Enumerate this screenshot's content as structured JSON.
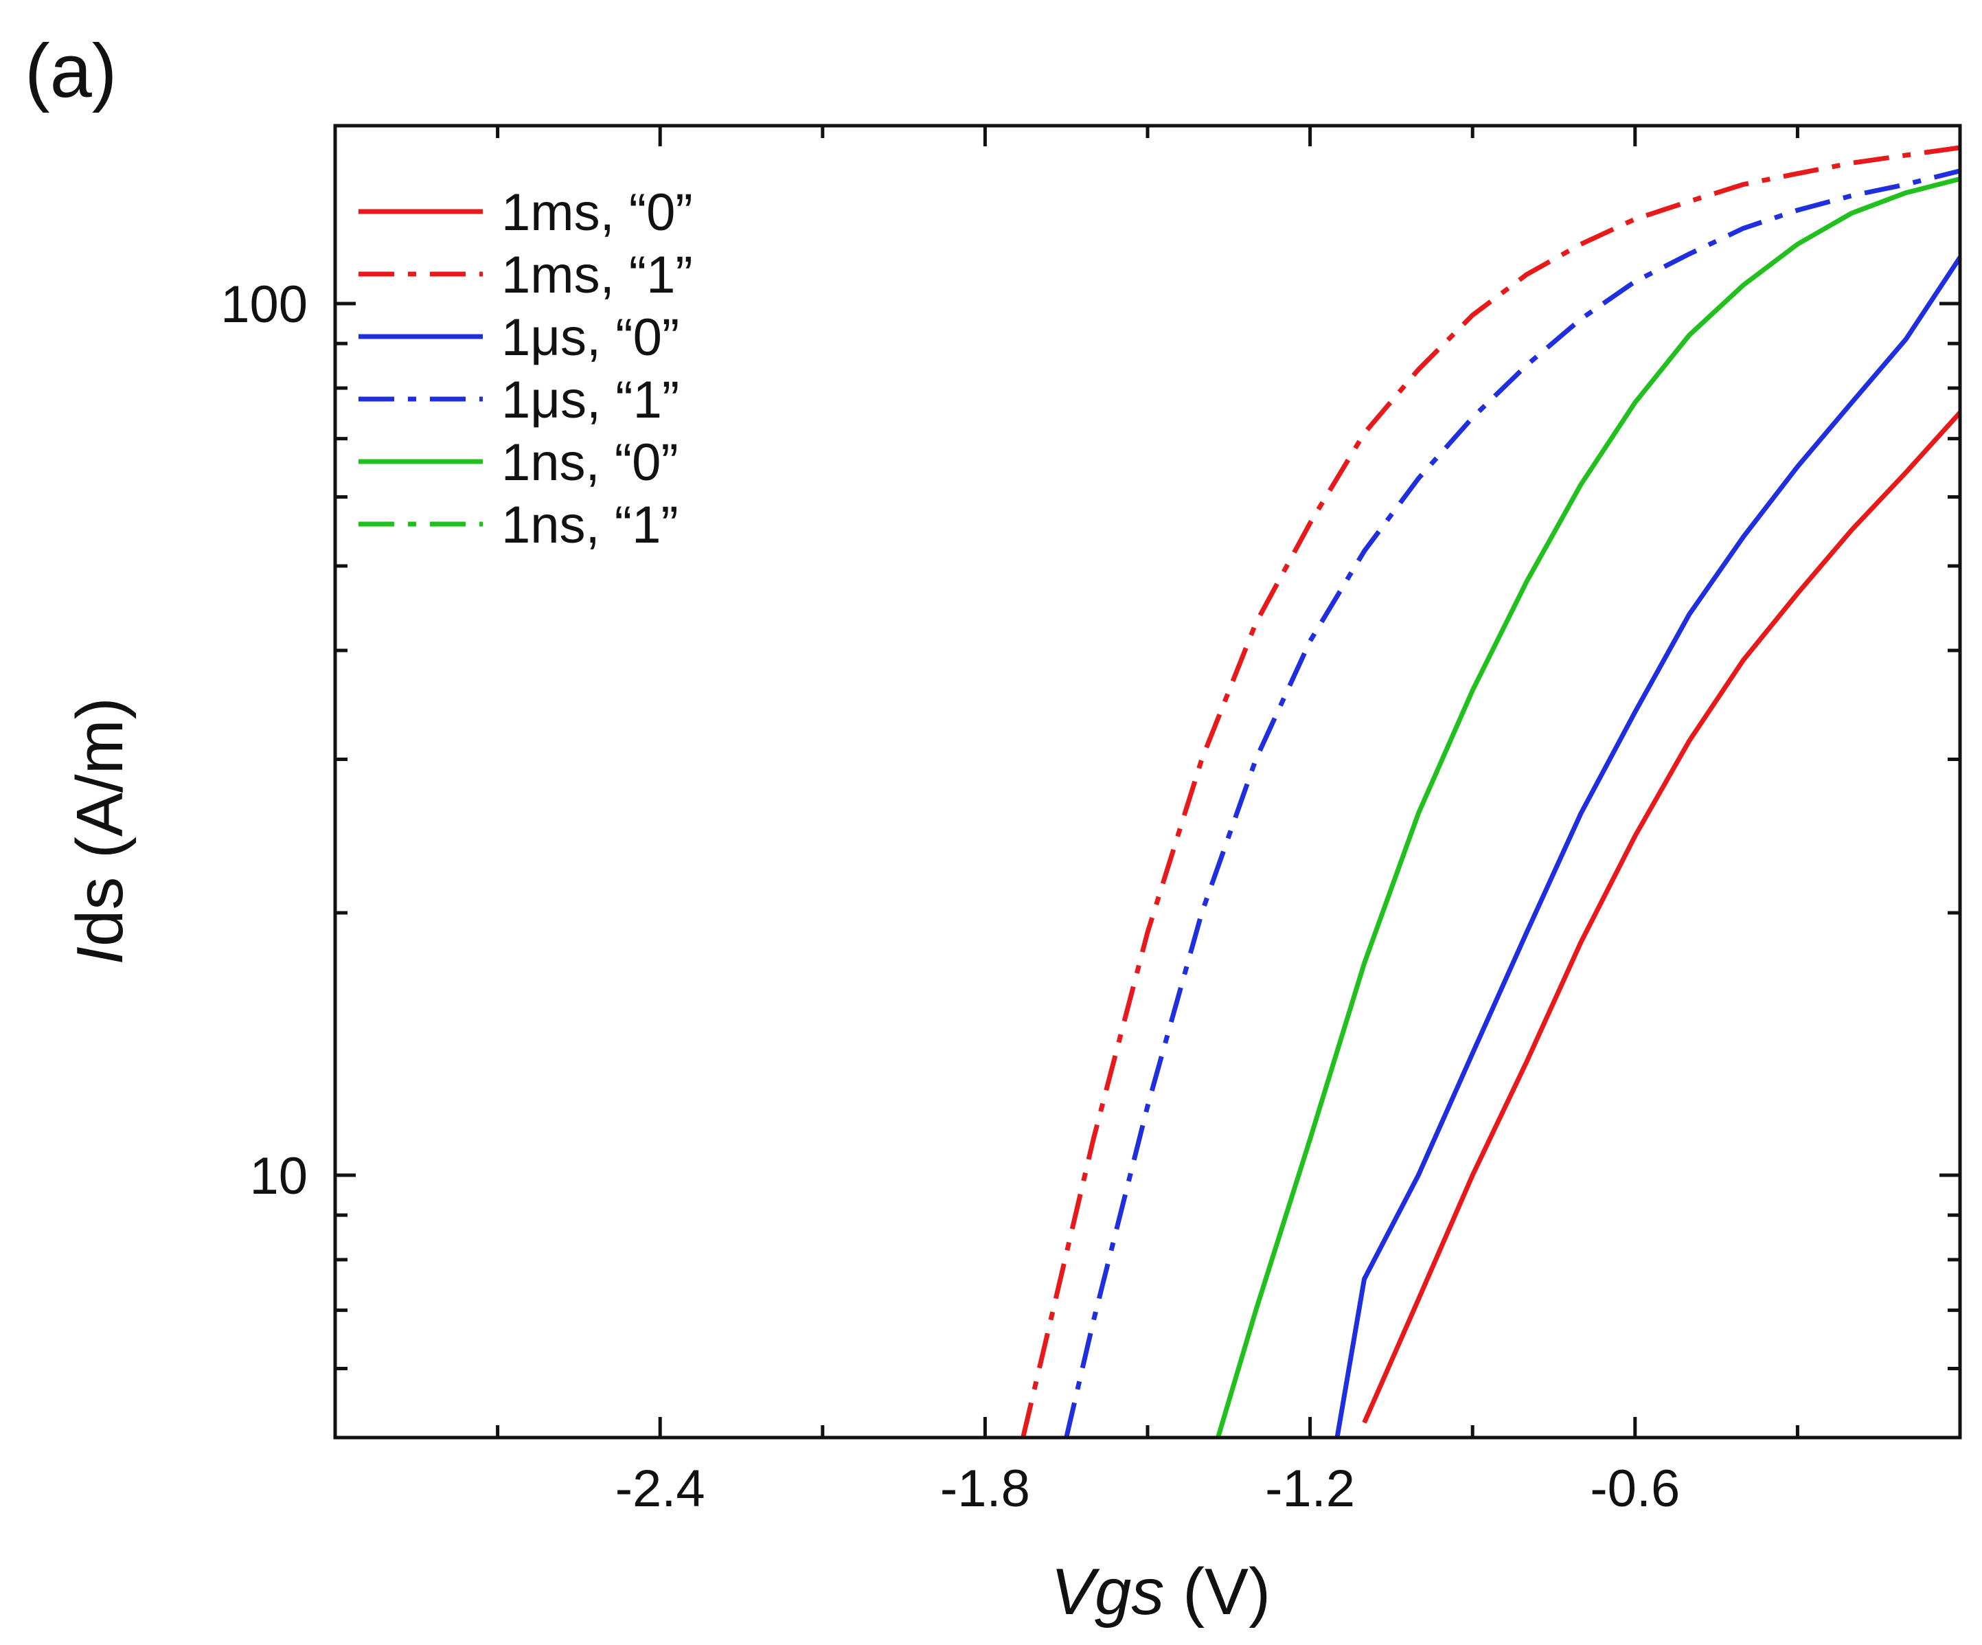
{
  "panel_label": "(a)",
  "chart_data": {
    "type": "line",
    "title": "",
    "xlabel": "Vgs (V)",
    "ylabel": "Ids (A/m)",
    "xlabel_parts": {
      "var": "Vgs",
      "unit": " (V)"
    },
    "ylabel_parts": {
      "var": "I",
      "rest": "ds (A/m)"
    },
    "xlim": [
      -3.0,
      0.0
    ],
    "ylim": [
      5,
      160
    ],
    "yscale": "log",
    "x_ticks": [
      -2.4,
      -1.8,
      -1.2,
      -0.6
    ],
    "x_tick_labels": [
      "-2.4",
      "-1.8",
      "-1.2",
      "-0.6"
    ],
    "x_minor_ticks": [
      -2.7,
      -2.1,
      -1.5,
      -0.9,
      -0.3
    ],
    "y_ticks": [
      10,
      100
    ],
    "y_tick_labels": [
      "10",
      "100"
    ],
    "y_minor_ticks": [
      6,
      7,
      8,
      9,
      20,
      30,
      40,
      50,
      60,
      70,
      80,
      90
    ],
    "grid": false,
    "legend_position": "top-left",
    "series": [
      {
        "name": "1ms, “0”",
        "color": "#e8191b",
        "dash": "solid",
        "x": [
          -1.1,
          -1.0,
          -0.9,
          -0.8,
          -0.7,
          -0.6,
          -0.5,
          -0.4,
          -0.3,
          -0.2,
          -0.1,
          0.0
        ],
        "y": [
          5.2,
          7.2,
          10.0,
          13.5,
          18.5,
          24.5,
          31.5,
          39.0,
          46.5,
          55.0,
          64.0,
          75.0
        ]
      },
      {
        "name": "1ms, “1”",
        "color": "#e8191b",
        "dash": "dashdot",
        "x": [
          -1.73,
          -1.6,
          -1.5,
          -1.4,
          -1.3,
          -1.2,
          -1.1,
          -1.0,
          -0.9,
          -0.8,
          -0.7,
          -0.6,
          -0.5,
          -0.4,
          -0.3,
          -0.2,
          -0.1,
          0.0
        ],
        "y": [
          5.0,
          11.0,
          19.0,
          30.0,
          43.0,
          56.0,
          71.0,
          84.0,
          97.0,
          108.0,
          117.0,
          125.0,
          131.0,
          137.0,
          141.0,
          145.0,
          148.0,
          151.0
        ]
      },
      {
        "name": "1μs, “0”",
        "color": "#1f2fe0",
        "dash": "solid",
        "x": [
          -1.15,
          -1.1,
          -1.0,
          -0.9,
          -0.8,
          -0.7,
          -0.6,
          -0.5,
          -0.4,
          -0.3,
          -0.2,
          -0.1,
          0.0
        ],
        "y": [
          5.0,
          7.6,
          10.0,
          13.8,
          19.0,
          26.0,
          34.0,
          44.0,
          54.0,
          65.0,
          77.0,
          91.0,
          113.0
        ]
      },
      {
        "name": "1μs, “1”",
        "color": "#1f2fe0",
        "dash": "dashdot",
        "x": [
          -1.65,
          -1.6,
          -1.5,
          -1.4,
          -1.3,
          -1.2,
          -1.1,
          -1.0,
          -0.9,
          -0.8,
          -0.7,
          -0.6,
          -0.5,
          -0.4,
          -0.3,
          -0.2,
          -0.1,
          0.0
        ],
        "y": [
          5.0,
          6.8,
          12.0,
          20.0,
          30.0,
          41.0,
          52.0,
          63.0,
          74.0,
          85.0,
          96.0,
          106.0,
          114.0,
          122.0,
          128.0,
          133.0,
          137.0,
          142.0
        ]
      },
      {
        "name": "1ns, “0”",
        "color": "#22c01e",
        "dash": "solid",
        "x": [
          -1.37,
          -1.3,
          -1.2,
          -1.1,
          -1.0,
          -0.9,
          -0.8,
          -0.7,
          -0.6,
          -0.5,
          -0.4,
          -0.3,
          -0.2,
          -0.1,
          0.0
        ],
        "y": [
          5.0,
          7.0,
          11.0,
          17.5,
          26.0,
          36.0,
          48.0,
          62.0,
          77.0,
          92.0,
          105.0,
          117.0,
          127.0,
          134.0,
          139.0
        ]
      },
      {
        "name": "1ns, “1”",
        "color": "#22c01e",
        "dash": "dashdot",
        "x": [],
        "y": []
      }
    ]
  }
}
